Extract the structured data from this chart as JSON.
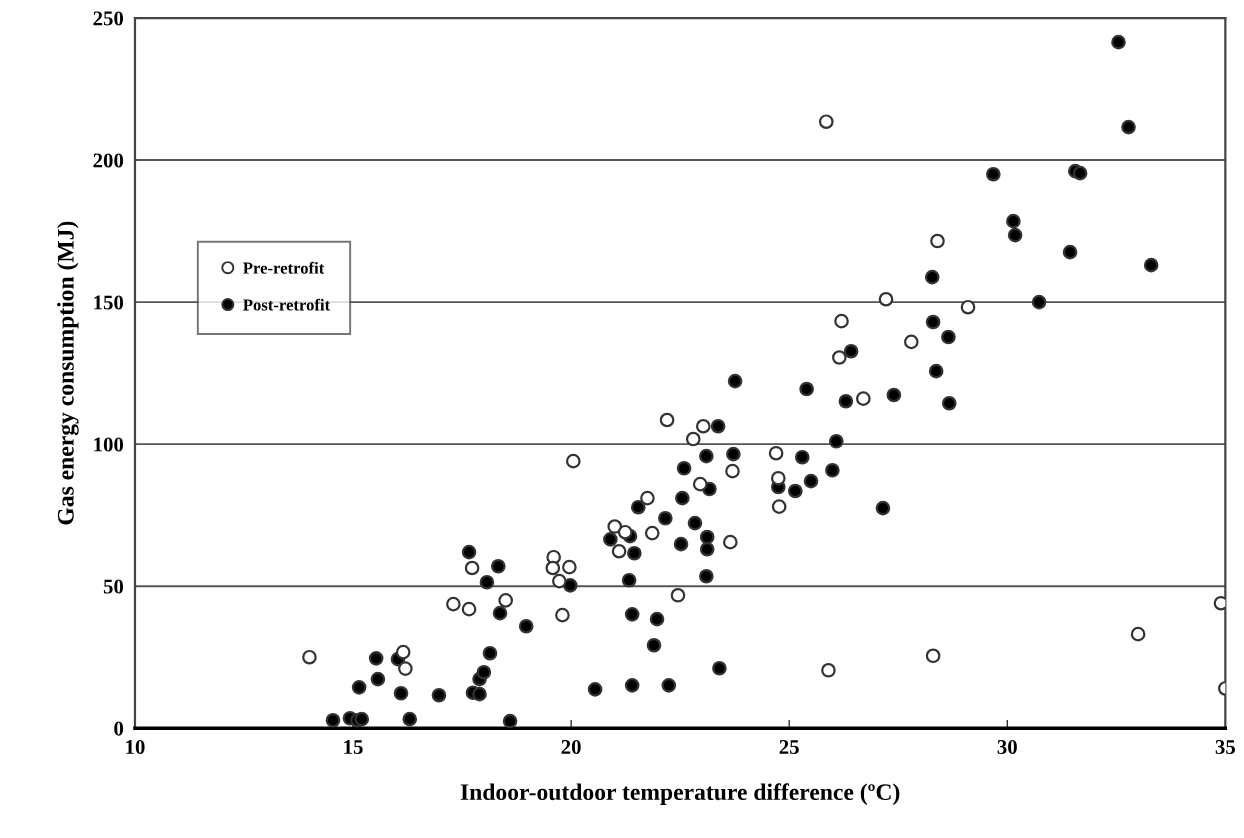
{
  "chart_data": {
    "type": "scatter",
    "xlabel": "Indoor-outdoor temperature difference (ºC)",
    "ylabel": "Gas energy consumption (MJ)",
    "xlim": [
      10,
      35
    ],
    "xticks": [
      10,
      15,
      20,
      25,
      30,
      35
    ],
    "ylim": [
      0,
      250
    ],
    "yticks": [
      0,
      50,
      100,
      150,
      200,
      250
    ],
    "grid": "y",
    "legend": "left",
    "marker": "circle",
    "series": [
      {
        "name": "Pre-retrofit",
        "color": "#ffffff",
        "x": [
          14.0,
          16.15,
          16.2,
          17.3,
          17.66,
          17.73,
          18.5,
          19.6,
          19.58,
          19.96,
          19.73,
          19.8,
          20.05,
          21.0,
          21.1,
          21.24,
          21.75,
          21.86,
          22.2,
          22.45,
          22.8,
          22.96,
          23.03,
          23.7,
          23.65,
          24.7,
          24.75,
          24.77,
          25.85,
          26.15,
          26.2,
          26.7,
          27.22,
          27.8,
          28.4,
          29.1,
          25.9,
          28.3,
          33.0,
          34.9,
          35.0
        ],
        "values": [
          25,
          26.8,
          21,
          43.7,
          41.9,
          56.4,
          45,
          60.2,
          56.4,
          56.7,
          51.8,
          39.8,
          94,
          71,
          62.3,
          69,
          81,
          68.7,
          108.5,
          46.8,
          101.8,
          85.9,
          106.3,
          90.5,
          65.5,
          96.8,
          88,
          78,
          213.5,
          130.5,
          143.3,
          116,
          151,
          136,
          171.5,
          148.2,
          20.4,
          25.5,
          33.1,
          44,
          14
        ]
      },
      {
        "name": "Post-retrofit",
        "color": "#000000",
        "x": [
          14.54,
          14.93,
          15.1,
          15.2,
          16.3,
          15.14,
          15.57,
          15.53,
          16.03,
          16.1,
          16.97,
          17.66,
          17.75,
          17.9,
          17.9,
          18.0,
          18.14,
          18.07,
          18.33,
          18.37,
          18.97,
          18.6,
          19.98,
          20.55,
          20.9,
          21.35,
          21.45,
          21.33,
          21.4,
          21.4,
          21.54,
          21.97,
          21.9,
          22.16,
          22.24,
          22.52,
          22.55,
          22.59,
          22.84,
          23.1,
          23.12,
          23.12,
          23.1,
          23.17,
          23.37,
          23.4,
          23.72,
          23.76,
          24.75,
          25.14,
          25.3,
          25.4,
          25.5,
          25.99,
          26.08,
          26.3,
          26.42,
          27.15,
          27.4,
          28.28,
          28.3,
          28.37,
          28.65,
          28.67,
          29.68,
          30.14,
          30.18,
          30.73,
          31.44,
          31.56,
          31.67,
          32.55,
          32.78,
          33.3
        ],
        "values": [
          2.8,
          3.5,
          2.8,
          3.2,
          3.2,
          14.4,
          17.3,
          24.6,
          24.3,
          12.3,
          11.6,
          62,
          12.5,
          12,
          17.3,
          19.7,
          26.4,
          51.4,
          57,
          40.5,
          35.9,
          2.5,
          50.3,
          13.7,
          66.5,
          67.6,
          61.6,
          52.1,
          40.1,
          15.1,
          77.8,
          38.4,
          29.2,
          73.9,
          15.1,
          64.8,
          81,
          91.5,
          72.2,
          53.5,
          67.3,
          63,
          95.8,
          84.2,
          106.3,
          21.1,
          96.5,
          122.2,
          84.9,
          83.5,
          95.4,
          119.4,
          87,
          90.8,
          101,
          115.1,
          132.7,
          77.5,
          117.3,
          158.8,
          143,
          125.7,
          137.7,
          114.4,
          195,
          178.5,
          173.6,
          150,
          167.6,
          196.1,
          195.4,
          241.5,
          211.6,
          163
        ]
      }
    ]
  }
}
